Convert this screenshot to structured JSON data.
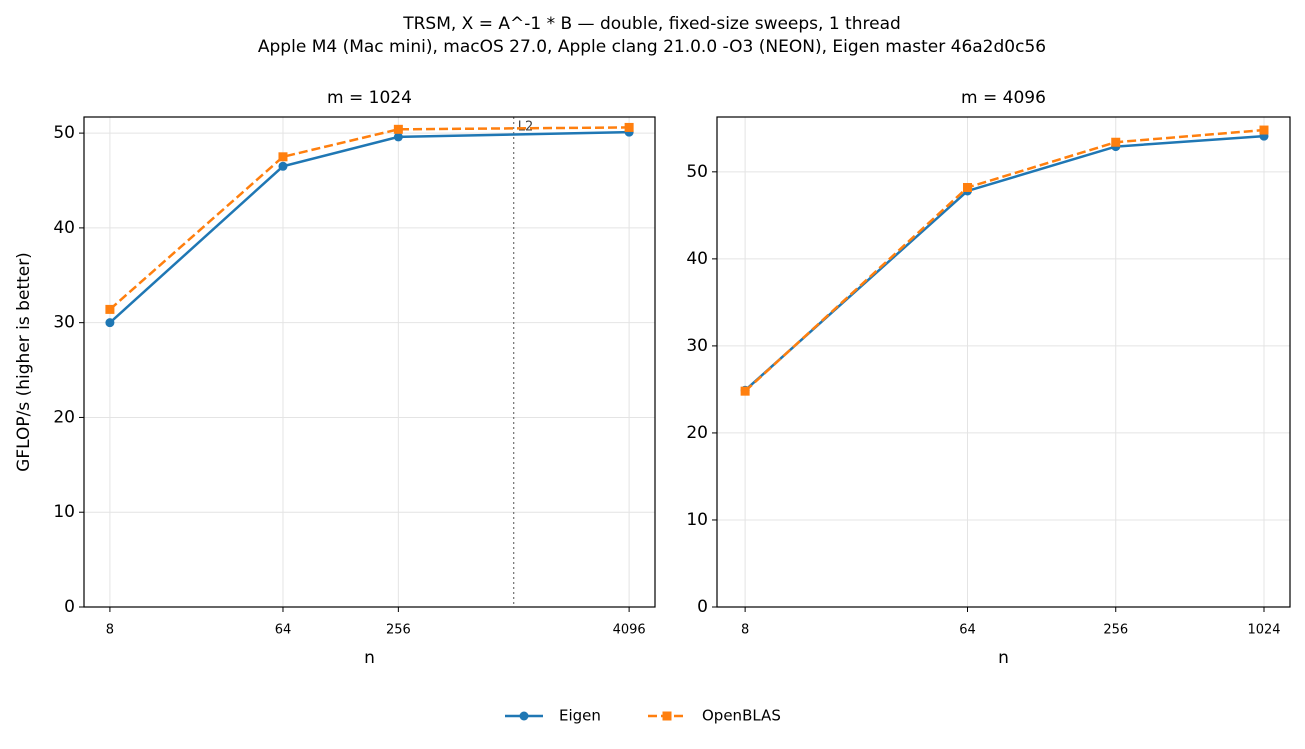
{
  "title": "TRSM, X = A^-1 * B — double, fixed-size sweeps, 1 thread",
  "subtitle": "Apple M4 (Mac mini), macOS 27.0, Apple clang 21.0.0 -O3 (NEON), Eigen master 46a2d0c56",
  "legend": "lower center",
  "chart_data": [
    {
      "type": "line",
      "title": "m = 1024",
      "x_label": "n",
      "y_label": "GFLOP/s (higher is better)",
      "xscale": "log",
      "x": [
        8,
        64,
        256,
        4096
      ],
      "xlim": [
        5.86,
        5590
      ],
      "xticks": [
        8,
        64,
        256,
        4096
      ],
      "ylim": [
        0,
        51.7
      ],
      "yticks": [
        0,
        10,
        20,
        30,
        40,
        50
      ],
      "grid": true,
      "annotations": [
        {
          "x": 1024,
          "label": "L2"
        }
      ],
      "series": [
        {
          "name": "Eigen",
          "color": "#1f77b4",
          "marker": "circle",
          "linestyle": "solid",
          "values": [
            30.0,
            46.5,
            49.6,
            50.1
          ]
        },
        {
          "name": "OpenBLAS",
          "color": "#ff7f0e",
          "marker": "square",
          "linestyle": "dashed",
          "values": [
            31.4,
            47.5,
            50.4,
            50.6
          ]
        }
      ]
    },
    {
      "type": "line",
      "title": "m = 4096",
      "x_label": "n",
      "xscale": "log",
      "x": [
        8,
        64,
        256,
        1024
      ],
      "xlim": [
        6.15,
        1306
      ],
      "xticks": [
        8,
        64,
        256,
        1024
      ],
      "ylim": [
        0,
        56.3
      ],
      "yticks": [
        0,
        10,
        20,
        30,
        40,
        50
      ],
      "grid": true,
      "series": [
        {
          "name": "Eigen",
          "color": "#1f77b4",
          "marker": "circle",
          "linestyle": "solid",
          "values": [
            24.9,
            47.8,
            52.9,
            54.1
          ]
        },
        {
          "name": "OpenBLAS",
          "color": "#ff7f0e",
          "marker": "square",
          "linestyle": "dashed",
          "values": [
            24.8,
            48.2,
            53.4,
            54.8
          ]
        }
      ]
    }
  ]
}
